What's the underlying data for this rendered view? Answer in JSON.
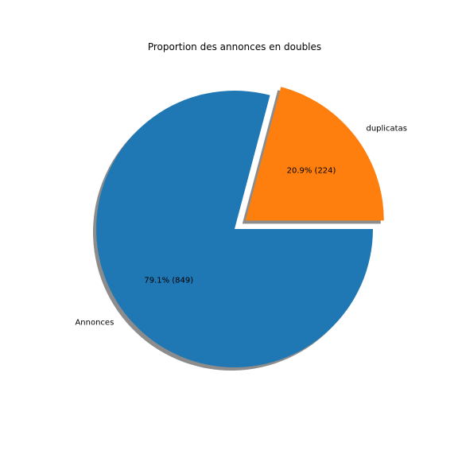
{
  "chart_data": {
    "type": "pie",
    "title": "Proportion des annonces en doubles",
    "slices": [
      {
        "label": "Annonces",
        "value": 849,
        "pct_label": "79.1% (849)",
        "color": "#1f77b4",
        "explode": 0
      },
      {
        "label": "duplicatas",
        "value": 224,
        "pct_label": "20.9% (224)",
        "color": "#ff7f0e",
        "explode": 0.1
      }
    ],
    "start_angle": 0,
    "counterclock": false,
    "shadow": true
  }
}
